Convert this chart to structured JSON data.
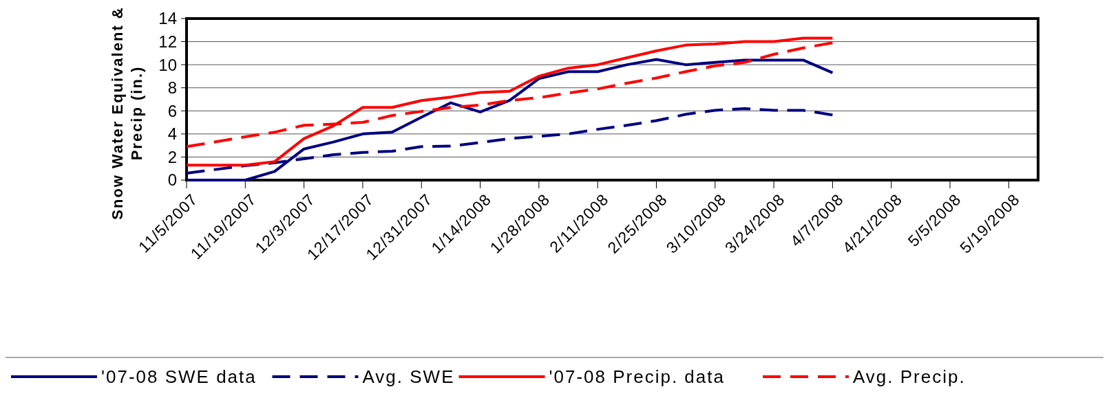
{
  "chart_data": {
    "type": "line",
    "ylabel": "Snow Water Equivalent &\nPrecip (in.)",
    "x": [
      "2007-11-05",
      "2007-11-19",
      "2007-11-26",
      "2007-12-03",
      "2007-12-10",
      "2007-12-17",
      "2007-12-24",
      "2007-12-31",
      "2008-01-07",
      "2008-01-14",
      "2008-01-21",
      "2008-01-28",
      "2008-02-04",
      "2008-02-11",
      "2008-02-18",
      "2008-02-25",
      "2008-03-03",
      "2008-03-10",
      "2008-03-17",
      "2008-03-24",
      "2008-03-31",
      "2008-04-07"
    ],
    "series": [
      {
        "name": "'07-08 SWE data",
        "color": "#000080",
        "line_style": "solid",
        "values": [
          0,
          0,
          0.75,
          2.7,
          3.3,
          4.0,
          4.15,
          5.45,
          6.7,
          5.9,
          6.9,
          8.8,
          9.4,
          9.4,
          10.0,
          10.45,
          10.0,
          10.2,
          10.4,
          10.4,
          10.4,
          9.3
        ]
      },
      {
        "name": "Avg. SWE",
        "color": "#000080",
        "line_style": "dashed",
        "values": [
          0.6,
          1.25,
          1.5,
          1.85,
          2.2,
          2.4,
          2.5,
          2.9,
          2.95,
          3.25,
          3.6,
          3.8,
          4.0,
          4.4,
          4.75,
          5.15,
          5.7,
          6.05,
          6.2,
          6.05,
          6.05,
          5.65
        ]
      },
      {
        "name": "'07-08 Precip. data",
        "color": "#ff0000",
        "line_style": "solid",
        "values": [
          1.3,
          1.3,
          1.6,
          3.6,
          4.7,
          6.3,
          6.3,
          6.9,
          7.2,
          7.6,
          7.7,
          9.0,
          9.7,
          10.0,
          10.6,
          11.2,
          11.7,
          11.8,
          12.0,
          12.0,
          12.3,
          12.3
        ]
      },
      {
        "name": "Avg. Precip.",
        "color": "#ff0000",
        "line_style": "dashed",
        "values": [
          2.9,
          3.75,
          4.15,
          4.75,
          4.85,
          5.0,
          5.6,
          5.95,
          6.3,
          6.5,
          6.9,
          7.15,
          7.55,
          7.9,
          8.4,
          8.85,
          9.4,
          9.9,
          10.2,
          10.9,
          11.45,
          11.9
        ]
      }
    ],
    "xlim": [
      "2007-11-05",
      "2008-05-26"
    ],
    "xticks": [
      {
        "value": "2007-11-05",
        "label": "11/5/2007"
      },
      {
        "value": "2007-11-19",
        "label": "11/19/2007"
      },
      {
        "value": "2007-12-03",
        "label": "12/3/2007"
      },
      {
        "value": "2007-12-17",
        "label": "12/17/2007"
      },
      {
        "value": "2007-12-31",
        "label": "12/31/2007"
      },
      {
        "value": "2008-01-14",
        "label": "1/14/2008"
      },
      {
        "value": "2008-01-28",
        "label": "1/28/2008"
      },
      {
        "value": "2008-02-11",
        "label": "2/11/2008"
      },
      {
        "value": "2008-02-25",
        "label": "2/25/2008"
      },
      {
        "value": "2008-03-10",
        "label": "3/10/2008"
      },
      {
        "value": "2008-03-24",
        "label": "3/24/2008"
      },
      {
        "value": "2008-04-07",
        "label": "4/7/2008"
      },
      {
        "value": "2008-04-21",
        "label": "4/21/2008"
      },
      {
        "value": "2008-05-05",
        "label": "5/5/2008"
      },
      {
        "value": "2008-05-19",
        "label": "5/19/2008"
      }
    ],
    "ylim": [
      0,
      14
    ],
    "yticks": [
      0,
      2,
      4,
      6,
      8,
      10,
      12,
      14
    ],
    "grid": "y",
    "legend": "bottom",
    "marker": "none"
  }
}
